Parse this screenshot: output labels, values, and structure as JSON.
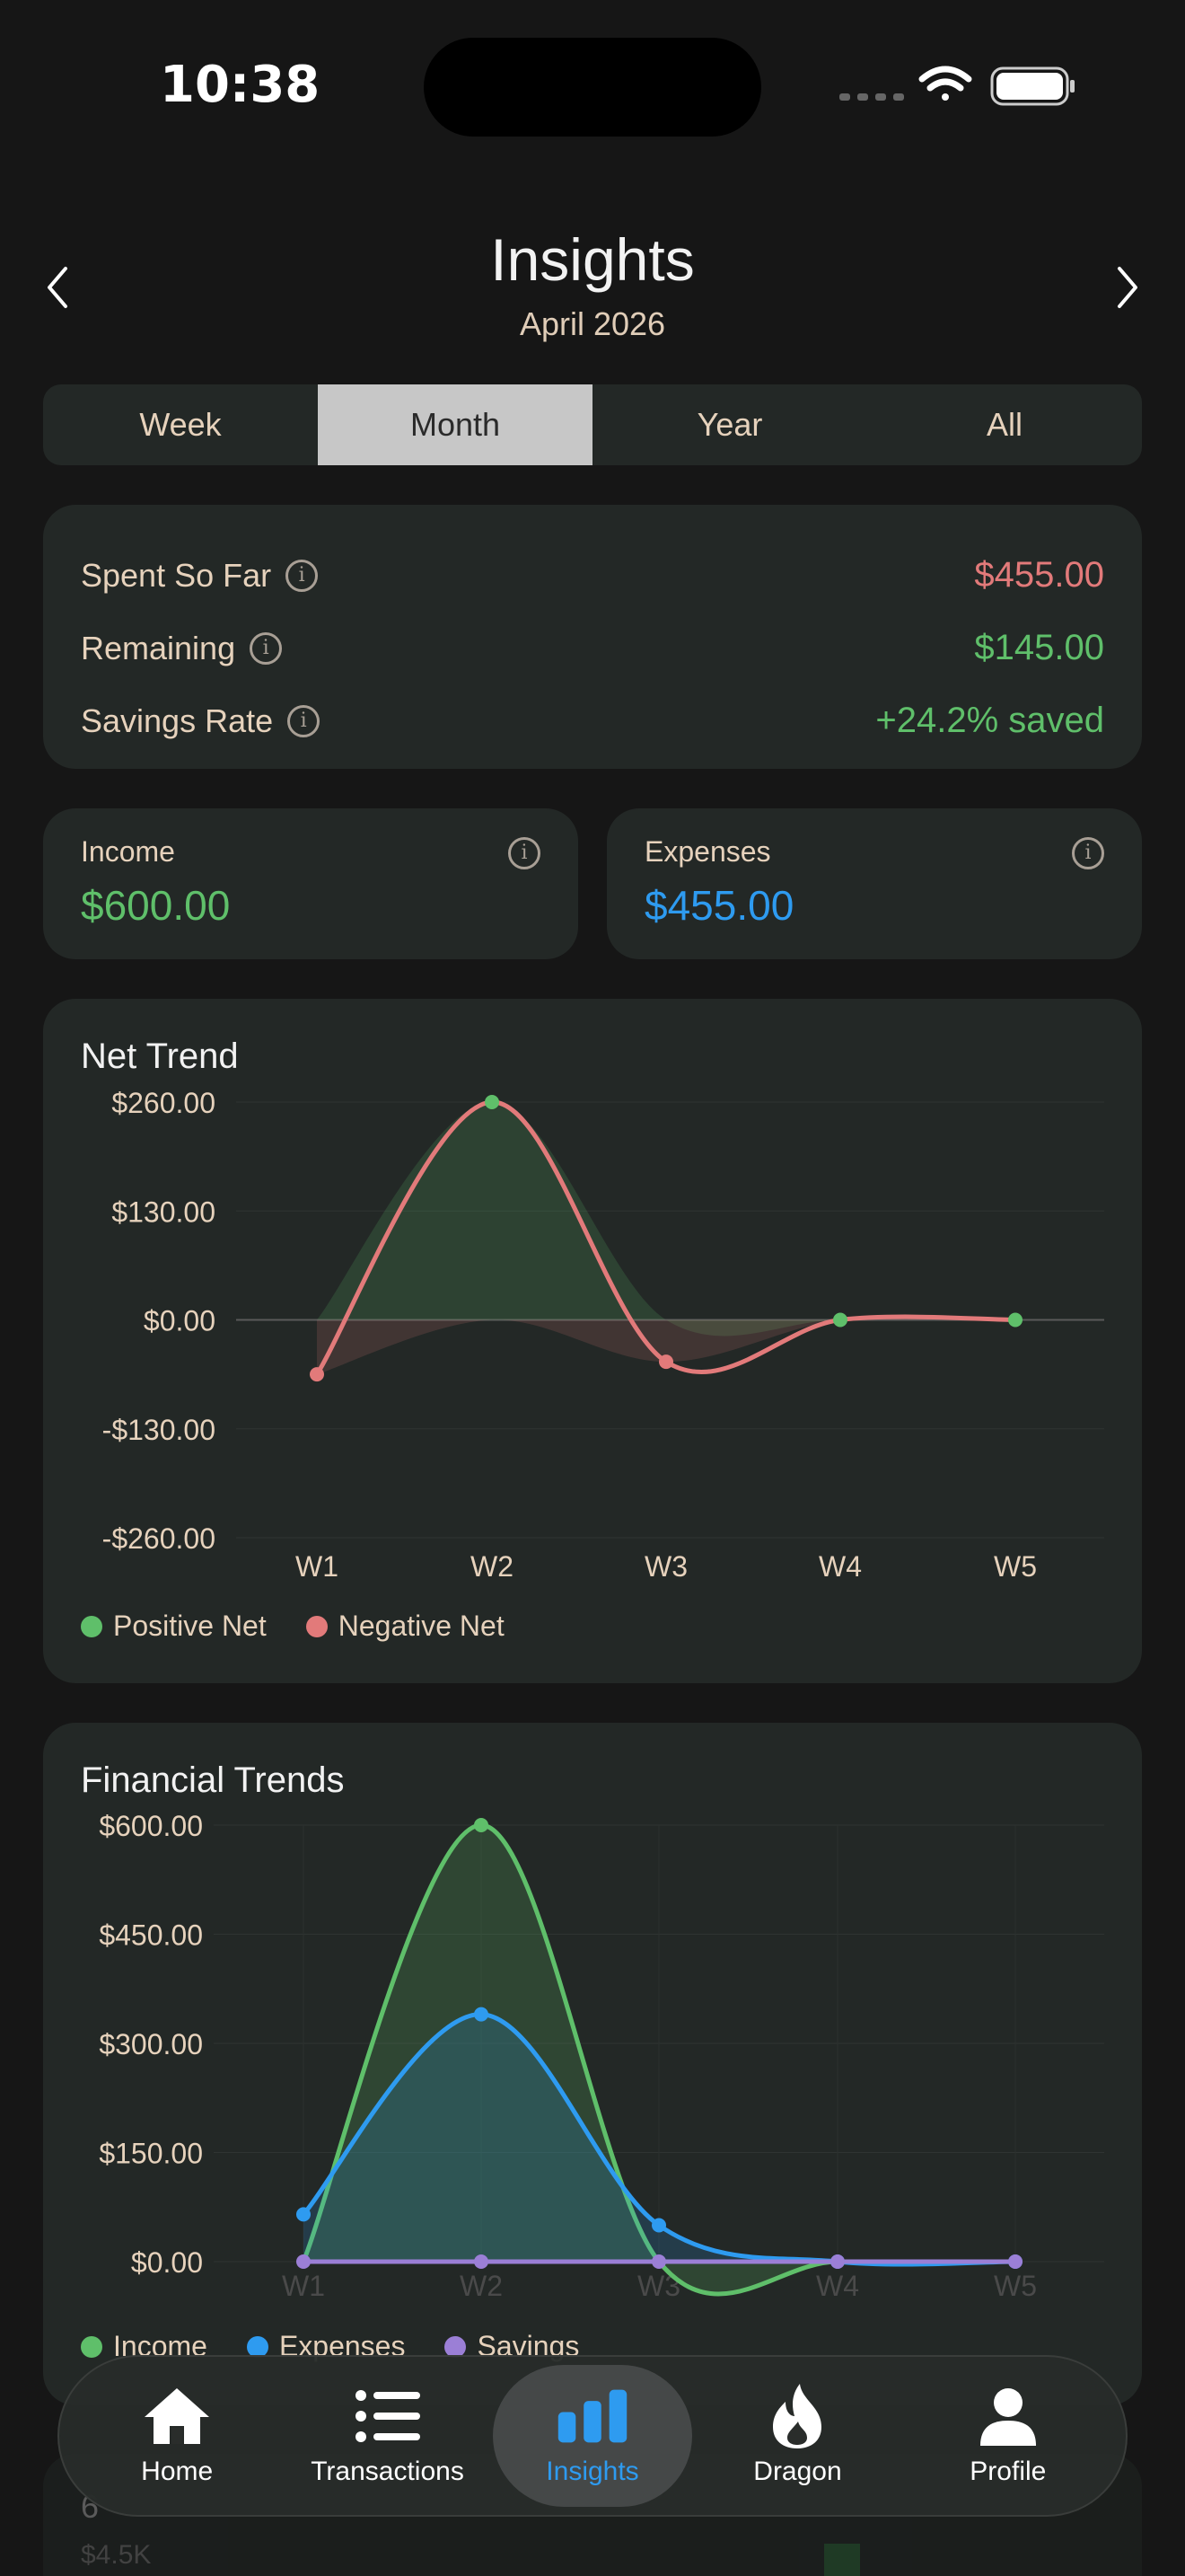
{
  "status": {
    "time": "10:38"
  },
  "header": {
    "title": "Insights",
    "subtitle": "April 2026"
  },
  "period_tabs": [
    "Week",
    "Month",
    "Year",
    "All"
  ],
  "active_period": "Month",
  "summary": {
    "spent_label": "Spent So Far",
    "spent_value": "$455.00",
    "remaining_label": "Remaining",
    "remaining_value": "$145.00",
    "savings_label": "Savings Rate",
    "savings_value": "+24.2% saved"
  },
  "income": {
    "label": "Income",
    "value": "$600.00"
  },
  "expenses": {
    "label": "Expenses",
    "value": "$455.00"
  },
  "colors": {
    "green": "#5fbf6a",
    "red": "#e27a7a",
    "blue": "#2e9bf0",
    "purple": "#9b7fd6",
    "cream": "#e6d2bc"
  },
  "net_trend": {
    "title": "Net Trend",
    "legend": [
      "Positive Net",
      "Negative Net"
    ]
  },
  "financial_trends": {
    "title": "Financial Trends",
    "legend": [
      "Income",
      "Expenses",
      "Savings"
    ]
  },
  "chart_data": [
    {
      "type": "line",
      "title": "Net Trend",
      "categories": [
        "W1",
        "W2",
        "W3",
        "W4",
        "W5"
      ],
      "ytick_labels": [
        "$260.00",
        "$130.00",
        "$0.00",
        "-$130.00",
        "-$260.00"
      ],
      "ylim": [
        -260,
        260
      ],
      "series": [
        {
          "name": "Net",
          "values": [
            -65,
            260,
            -50,
            0,
            0
          ]
        }
      ],
      "legend": [
        "Positive Net",
        "Negative Net"
      ],
      "grid": true
    },
    {
      "type": "area",
      "title": "Financial Trends",
      "categories": [
        "W1",
        "W2",
        "W3",
        "W4",
        "W5"
      ],
      "ytick_labels": [
        "$600.00",
        "$450.00",
        "$300.00",
        "$150.00",
        "$0.00"
      ],
      "ylim": [
        0,
        600
      ],
      "series": [
        {
          "name": "Income",
          "values": [
            0,
            600,
            0,
            0,
            0
          ]
        },
        {
          "name": "Expenses",
          "values": [
            65,
            340,
            50,
            0,
            0
          ]
        },
        {
          "name": "Savings",
          "values": [
            0,
            0,
            0,
            0,
            0
          ]
        }
      ],
      "grid": true
    }
  ],
  "below": {
    "title": "6",
    "amount": "$4.5K"
  },
  "tabbar": [
    {
      "label": "Home",
      "icon": "house-icon"
    },
    {
      "label": "Transactions",
      "icon": "list-icon"
    },
    {
      "label": "Insights",
      "icon": "bar-chart-icon"
    },
    {
      "label": "Dragon",
      "icon": "flame-icon"
    },
    {
      "label": "Profile",
      "icon": "person-icon"
    }
  ]
}
